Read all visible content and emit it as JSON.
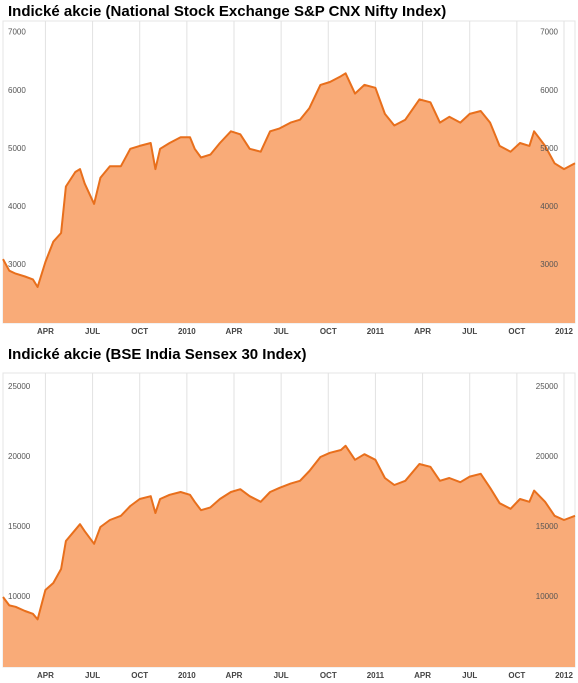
{
  "chart_data": [
    {
      "type": "area",
      "title": "Indické akcie (National Stock Exchange S&P CNX Nifty Index)",
      "x": [
        0.3,
        0.7,
        1.1,
        1.7,
        2.2,
        2.5,
        3.0,
        3.5,
        4.0,
        4.3,
        4.9,
        5.2,
        5.5,
        6.1,
        6.5,
        7.1,
        7.8,
        8.4,
        9.0,
        9.7,
        10.0,
        10.3,
        10.9,
        11.6,
        12.2,
        12.5,
        12.9,
        13.5,
        14.1,
        14.8,
        15.4,
        16.0,
        16.7,
        17.3,
        17.9,
        18.6,
        19.2,
        19.8,
        20.5,
        21.1,
        21.8,
        22.1,
        22.7,
        23.3,
        24.0,
        24.6,
        25.2,
        25.9,
        26.8,
        27.5,
        28.1,
        28.7,
        29.4,
        30.0,
        30.7,
        31.3,
        31.9,
        32.6,
        33.2,
        33.8,
        34.1,
        34.8,
        35.4,
        36.0,
        36.7
      ],
      "values": [
        3100,
        2900,
        2850,
        2800,
        2750,
        2620,
        3050,
        3400,
        3550,
        4350,
        4600,
        4650,
        4400,
        4050,
        4500,
        4700,
        4700,
        5000,
        5050,
        5100,
        4650,
        5000,
        5100,
        5200,
        5200,
        5000,
        4850,
        4900,
        5100,
        5300,
        5250,
        5000,
        4950,
        5300,
        5350,
        5450,
        5500,
        5700,
        6100,
        6150,
        6250,
        6300,
        5950,
        6100,
        6050,
        5600,
        5400,
        5500,
        5850,
        5800,
        5450,
        5550,
        5450,
        5600,
        5650,
        5450,
        5050,
        4950,
        5100,
        5050,
        5300,
        5050,
        4750,
        4650,
        4750
      ],
      "color": "#e86f1c",
      "fill": "#f9ab78",
      "xlim": [
        0.3,
        36.7
      ],
      "xticks": [
        {
          "value": 3,
          "label": "APR"
        },
        {
          "value": 6,
          "label": "JUL"
        },
        {
          "value": 9,
          "label": "OCT"
        },
        {
          "value": 12,
          "label": "2010"
        },
        {
          "value": 15,
          "label": "APR"
        },
        {
          "value": 18,
          "label": "JUL"
        },
        {
          "value": 21,
          "label": "OCT"
        },
        {
          "value": 24,
          "label": "2011"
        },
        {
          "value": 27,
          "label": "APR"
        },
        {
          "value": 30,
          "label": "JUL"
        },
        {
          "value": 33,
          "label": "OCT"
        },
        {
          "value": 36,
          "label": "2012"
        }
      ],
      "ylim": [
        2000,
        7200
      ],
      "yticks": [
        3000,
        4000,
        5000,
        6000,
        7000
      ],
      "grid": true
    },
    {
      "type": "area",
      "title": "Indické akcie (BSE India Sensex 30 Index)",
      "x": [
        0.3,
        0.7,
        1.1,
        1.7,
        2.2,
        2.5,
        3.0,
        3.5,
        4.0,
        4.3,
        4.9,
        5.2,
        5.5,
        6.1,
        6.5,
        7.1,
        7.8,
        8.4,
        9.0,
        9.7,
        10.0,
        10.3,
        10.9,
        11.6,
        12.2,
        12.5,
        12.9,
        13.5,
        14.1,
        14.8,
        15.4,
        16.0,
        16.7,
        17.3,
        17.9,
        18.6,
        19.2,
        19.8,
        20.5,
        21.1,
        21.8,
        22.1,
        22.7,
        23.3,
        24.0,
        24.6,
        25.2,
        25.9,
        26.8,
        27.5,
        28.1,
        28.7,
        29.4,
        30.0,
        30.7,
        31.3,
        31.9,
        32.6,
        33.2,
        33.8,
        34.1,
        34.8,
        35.4,
        36.0,
        36.7
      ],
      "values": [
        10000,
        9400,
        9300,
        9000,
        8800,
        8400,
        10500,
        11000,
        12000,
        14000,
        14800,
        15200,
        14700,
        13800,
        15000,
        15500,
        15800,
        16500,
        17000,
        17200,
        16000,
        17000,
        17300,
        17500,
        17300,
        16800,
        16200,
        16400,
        17000,
        17500,
        17700,
        17200,
        16800,
        17500,
        17800,
        18100,
        18300,
        19000,
        20000,
        20300,
        20500,
        20800,
        19800,
        20200,
        19800,
        18500,
        18000,
        18300,
        19500,
        19300,
        18300,
        18500,
        18200,
        18600,
        18800,
        17800,
        16700,
        16300,
        17000,
        16800,
        17600,
        16800,
        15800,
        15500,
        15800
      ],
      "color": "#e86f1c",
      "fill": "#f9ab78",
      "xlim": [
        0.3,
        36.7
      ],
      "xticks": [
        {
          "value": 3,
          "label": "APR"
        },
        {
          "value": 6,
          "label": "JUL"
        },
        {
          "value": 9,
          "label": "OCT"
        },
        {
          "value": 12,
          "label": "2010"
        },
        {
          "value": 15,
          "label": "APR"
        },
        {
          "value": 18,
          "label": "JUL"
        },
        {
          "value": 21,
          "label": "OCT"
        },
        {
          "value": 24,
          "label": "2011"
        },
        {
          "value": 27,
          "label": "APR"
        },
        {
          "value": 30,
          "label": "JUL"
        },
        {
          "value": 33,
          "label": "OCT"
        },
        {
          "value": 36,
          "label": "2012"
        }
      ],
      "ylim": [
        5000,
        26000
      ],
      "yticks": [
        10000,
        15000,
        20000,
        25000
      ],
      "grid": true
    }
  ]
}
